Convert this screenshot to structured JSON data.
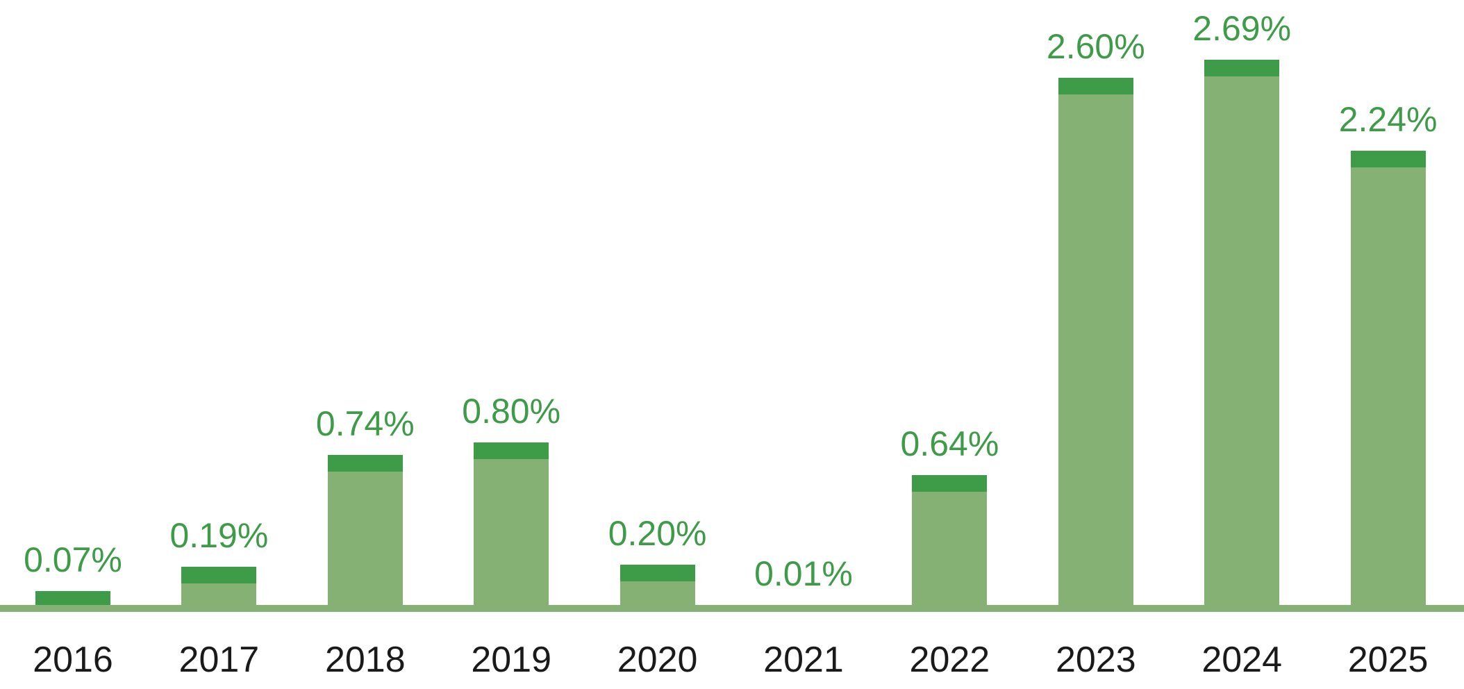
{
  "chart_data": {
    "type": "bar",
    "title": "",
    "xlabel": "",
    "ylabel": "",
    "unit": "%",
    "categories": [
      "2016",
      "2017",
      "2018",
      "2019",
      "2020",
      "2021",
      "2022",
      "2023",
      "2024",
      "2025"
    ],
    "values": [
      0.07,
      0.19,
      0.74,
      0.8,
      0.2,
      0.01,
      0.64,
      2.6,
      2.69,
      2.24
    ],
    "labels": [
      "0.07%",
      "0.19%",
      "0.74%",
      "0.80%",
      "0.20%",
      "0.01%",
      "0.64%",
      "2.60%",
      "2.69%",
      "2.24%"
    ],
    "ylim": [
      0,
      3
    ],
    "grid": false,
    "legend": "none",
    "y_axis_visible": false,
    "x_axis_line_visible": true,
    "value_labels_position": "above-bars",
    "style": {
      "bar_body_color": "#85b274",
      "bar_cap_color": "#3e9b47",
      "value_label_color": "#3e9b47",
      "axis_line_color": "#85b274",
      "category_label_color": "#1a1a1a",
      "background": "#ffffff"
    }
  }
}
